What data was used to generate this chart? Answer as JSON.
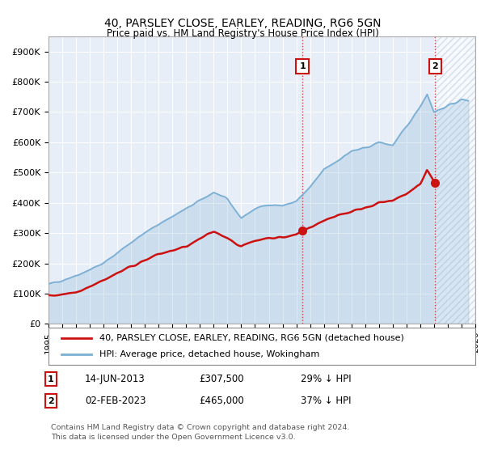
{
  "title": "40, PARSLEY CLOSE, EARLEY, READING, RG6 5GN",
  "subtitle": "Price paid vs. HM Land Registry's House Price Index (HPI)",
  "ylabel_ticks": [
    "£0",
    "£100K",
    "£200K",
    "£300K",
    "£400K",
    "£500K",
    "£600K",
    "£700K",
    "£800K",
    "£900K"
  ],
  "ytick_values": [
    0,
    100000,
    200000,
    300000,
    400000,
    500000,
    600000,
    700000,
    800000,
    900000
  ],
  "ylim": [
    0,
    950000
  ],
  "xlim_start": 1995.0,
  "xlim_end": 2026.0,
  "hpi_color": "#7bafd4",
  "hpi_fill_color": "#ccdff0",
  "price_color": "#cc1111",
  "marker1_date": 2013.45,
  "marker1_price": 307500,
  "marker2_date": 2023.09,
  "marker2_price": 465000,
  "legend_line1": "40, PARSLEY CLOSE, EARLEY, READING, RG6 5GN (detached house)",
  "legend_line2": "HPI: Average price, detached house, Wokingham",
  "annotation1_date": "14-JUN-2013",
  "annotation1_price": "£307,500",
  "annotation1_hpi": "29% ↓ HPI",
  "annotation2_date": "02-FEB-2023",
  "annotation2_price": "£465,000",
  "annotation2_hpi": "37% ↓ HPI",
  "footer": "Contains HM Land Registry data © Crown copyright and database right 2024.\nThis data is licensed under the Open Government Licence v3.0.",
  "hpi_keypoints_x": [
    1995,
    1997,
    1999,
    2001,
    2003,
    2005,
    2007,
    2008,
    2009,
    2010,
    2011,
    2012,
    2013,
    2014,
    2015,
    2016,
    2017,
    2018,
    2019,
    2020,
    2021,
    2022,
    2022.5,
    2023,
    2024,
    2025
  ],
  "hpi_keypoints_y": [
    130000,
    160000,
    200000,
    270000,
    330000,
    380000,
    435000,
    410000,
    350000,
    380000,
    395000,
    390000,
    405000,
    450000,
    510000,
    540000,
    570000,
    580000,
    600000,
    590000,
    650000,
    720000,
    760000,
    700000,
    720000,
    740000
  ],
  "price_keypoints_x": [
    1995,
    1997,
    1999,
    2001,
    2003,
    2005,
    2007,
    2008,
    2009,
    2010,
    2011,
    2012,
    2013,
    2013.45,
    2014,
    2015,
    2016,
    2017,
    2018,
    2019,
    2020,
    2021,
    2022,
    2022.5,
    2023,
    2023.09
  ],
  "price_keypoints_y": [
    92000,
    105000,
    145000,
    190000,
    230000,
    255000,
    305000,
    285000,
    255000,
    275000,
    285000,
    285000,
    295000,
    307500,
    320000,
    340000,
    360000,
    370000,
    385000,
    400000,
    405000,
    430000,
    460000,
    510000,
    470000,
    465000
  ],
  "hpi_region_end": 2023.5,
  "grid_color": "#ffffff",
  "bg_color": "#e8eef8"
}
